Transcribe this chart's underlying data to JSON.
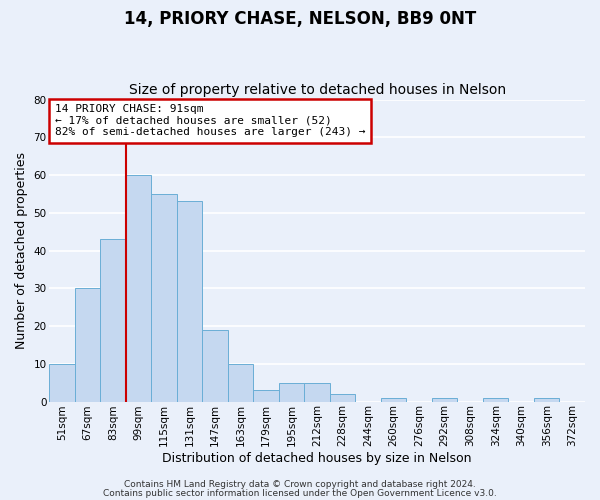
{
  "title": "14, PRIORY CHASE, NELSON, BB9 0NT",
  "subtitle": "Size of property relative to detached houses in Nelson",
  "xlabel": "Distribution of detached houses by size in Nelson",
  "ylabel": "Number of detached properties",
  "bin_labels": [
    "51sqm",
    "67sqm",
    "83sqm",
    "99sqm",
    "115sqm",
    "131sqm",
    "147sqm",
    "163sqm",
    "179sqm",
    "195sqm",
    "212sqm",
    "228sqm",
    "244sqm",
    "260sqm",
    "276sqm",
    "292sqm",
    "308sqm",
    "324sqm",
    "340sqm",
    "356sqm",
    "372sqm"
  ],
  "bar_values": [
    10,
    30,
    43,
    60,
    55,
    53,
    19,
    10,
    3,
    5,
    5,
    2,
    0,
    1,
    0,
    1,
    0,
    1,
    0,
    1,
    0
  ],
  "bar_color": "#c5d8f0",
  "bar_edge_color": "#6aaed6",
  "ylim": [
    0,
    80
  ],
  "yticks": [
    0,
    10,
    20,
    30,
    40,
    50,
    60,
    70,
    80
  ],
  "property_line_bin": 3.0,
  "annotation_title": "14 PRIORY CHASE: 91sqm",
  "annotation_line1": "← 17% of detached houses are smaller (52)",
  "annotation_line2": "82% of semi-detached houses are larger (243) →",
  "annotation_box_color": "#ffffff",
  "annotation_box_edge": "#cc0000",
  "vline_color": "#cc0000",
  "footer1": "Contains HM Land Registry data © Crown copyright and database right 2024.",
  "footer2": "Contains public sector information licensed under the Open Government Licence v3.0.",
  "background_color": "#eaf0fa",
  "grid_color": "#ffffff",
  "title_fontsize": 12,
  "subtitle_fontsize": 10,
  "axis_label_fontsize": 9,
  "tick_fontsize": 7.5,
  "annotation_fontsize": 8,
  "footer_fontsize": 6.5
}
